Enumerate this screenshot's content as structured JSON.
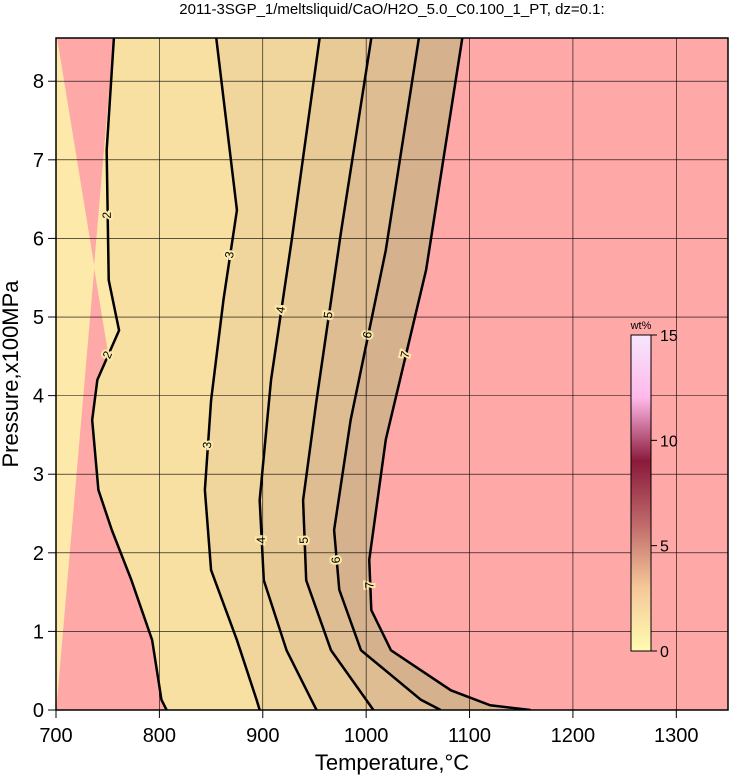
{
  "chart_data": {
    "type": "contour",
    "title": "2011-3SGP_1/meltsliquid/CaO/H2O_5.0_C0.100_1_PT, dz=0.1:",
    "xlabel": "Temperature,°C",
    "ylabel": "Pressure,x100MPa",
    "xlim": [
      700,
      1350
    ],
    "ylim": [
      0,
      8.55
    ],
    "xticks": [
      700,
      800,
      900,
      1000,
      1100,
      1200,
      1300
    ],
    "yticks": [
      0,
      1,
      2,
      3,
      4,
      5,
      6,
      7,
      8
    ],
    "grid": true,
    "contours": [
      {
        "level": 2,
        "x": [
          756,
          749,
          751,
          761,
          740,
          735,
          741,
          754,
          773,
          793,
          802,
          807
        ],
        "y": [
          8.55,
          7.12,
          5.47,
          4.83,
          4.2,
          3.69,
          2.8,
          2.29,
          1.65,
          0.89,
          0.13,
          0
        ]
      },
      {
        "level": 3,
        "x": [
          855,
          875,
          862,
          850,
          844,
          850,
          875,
          894,
          897
        ],
        "y": [
          8.55,
          6.36,
          5.22,
          3.94,
          2.8,
          1.78,
          0.89,
          0.13,
          0
        ]
      },
      {
        "level": 4,
        "x": [
          955,
          928,
          908,
          897,
          901,
          923,
          947,
          952
        ],
        "y": [
          8.55,
          5.98,
          4.2,
          2.67,
          1.65,
          0.76,
          0.13,
          0
        ]
      },
      {
        "level": 5,
        "x": [
          1005,
          976,
          952,
          939,
          942,
          966,
          1000,
          1007
        ],
        "y": [
          8.55,
          6.11,
          3.94,
          2.67,
          1.65,
          0.76,
          0.13,
          0
        ]
      },
      {
        "level": 6,
        "x": [
          1051,
          1019,
          985,
          969,
          974,
          995,
          1053,
          1072
        ],
        "y": [
          8.55,
          5.85,
          3.69,
          2.29,
          1.53,
          0.76,
          0.13,
          0
        ]
      },
      {
        "level": 7,
        "x": [
          1093,
          1058,
          1019,
          1003,
          1005,
          1024,
          1082,
          1120,
          1159
        ],
        "y": [
          8.55,
          5.6,
          3.44,
          1.91,
          1.27,
          0.76,
          0.25,
          0.06,
          0
        ]
      }
    ],
    "region_colors": [
      "#fde9a9",
      "#f8e0a2",
      "#f0d59c",
      "#e8ca97",
      "#dfbd92",
      "#d6b18e"
    ],
    "liquid_color": "#ffa8a8",
    "colorbar": {
      "label": "wt%",
      "lim": [
        0,
        15
      ],
      "ticks": [
        0,
        5,
        10,
        15
      ],
      "colors": [
        "#fffcb0",
        "#f5c89a",
        "#c06a6a",
        "#8a1a3a",
        "#ffb8e8",
        "#f6e6ff"
      ]
    }
  }
}
